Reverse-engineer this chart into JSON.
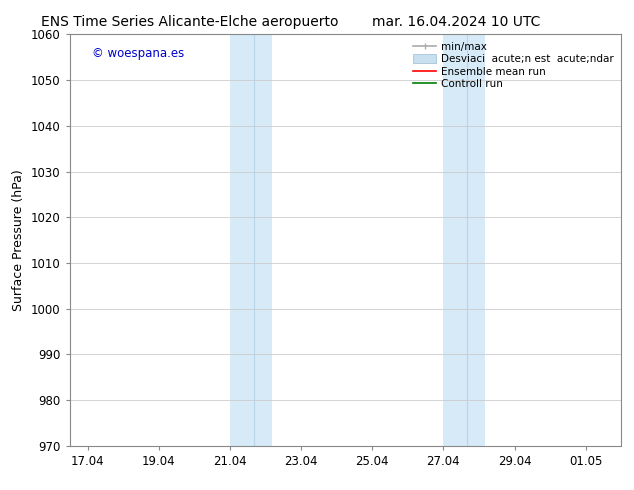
{
  "title_left": "ENS Time Series Alicante-Elche aeropuerto",
  "title_right": "mar. 16.04.2024 10 UTC",
  "ylabel": "Surface Pressure (hPa)",
  "ylim": [
    970,
    1060
  ],
  "yticks": [
    970,
    980,
    990,
    1000,
    1010,
    1020,
    1030,
    1040,
    1050,
    1060
  ],
  "xtick_labels": [
    "17.04",
    "19.04",
    "21.04",
    "23.04",
    "25.04",
    "27.04",
    "29.04",
    "01.05"
  ],
  "xtick_positions": [
    0,
    2,
    4,
    6,
    8,
    10,
    12,
    14
  ],
  "x_min": -0.5,
  "x_max": 15.0,
  "shade1_x1": 4.0,
  "shade1_x2": 5.17,
  "shade1_xmid": 4.67,
  "shade2_x1": 10.0,
  "shade2_x2": 11.17,
  "shade2_xmid": 10.67,
  "shade_color": "#d6eaf8",
  "shade_line_color": "#b8d4e8",
  "watermark": "© woespana.es",
  "watermark_color": "#0000cc",
  "leg_label_minmax": "min/max",
  "leg_label_desv": "Desviaci  acute;n est  acute;ndar",
  "leg_label_ensemble": "Ensemble mean run",
  "leg_label_control": "Controll run",
  "leg_color_minmax": "#aaaaaa",
  "leg_color_desv": "#c8dff0",
  "leg_color_ensemble": "#ff0000",
  "leg_color_control": "#008000",
  "bg_color": "#ffffff",
  "grid_color": "#cccccc",
  "title_fontsize": 10,
  "axis_label_fontsize": 9,
  "tick_fontsize": 8.5,
  "legend_fontsize": 7.5
}
